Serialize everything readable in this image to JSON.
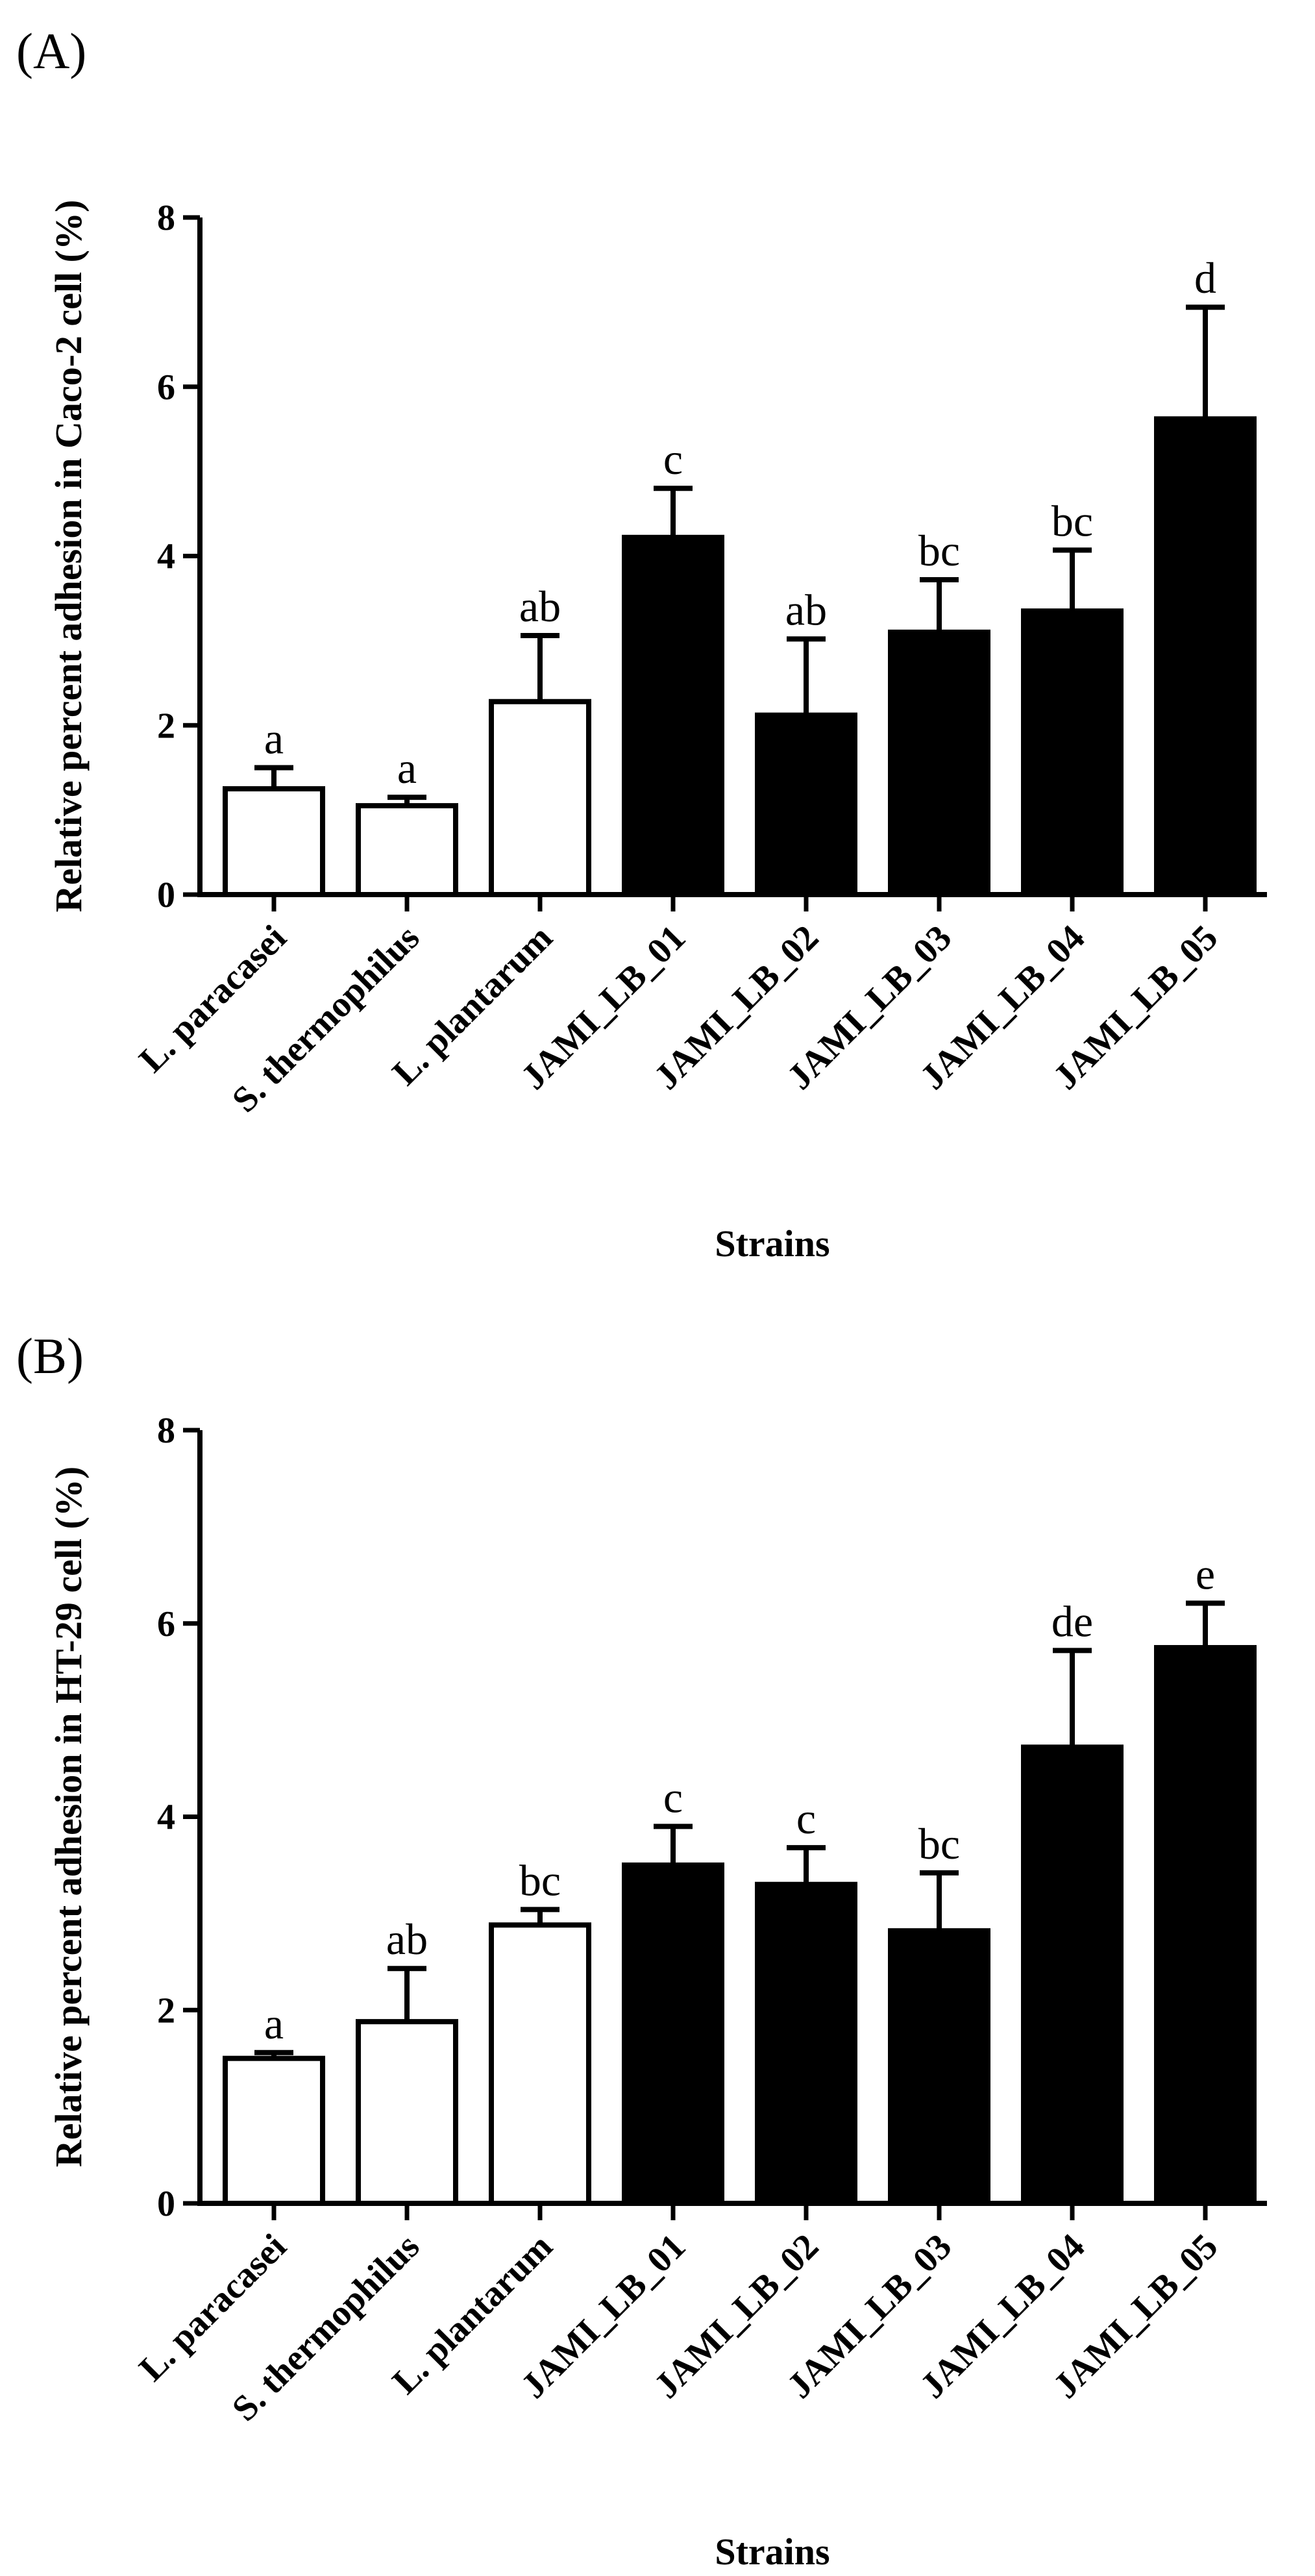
{
  "chart_data": [
    {
      "panel_label": "(A)",
      "type": "bar",
      "title": "",
      "xlabel": "Strains",
      "ylabel": "Relative percent adhesion in Caco-2 cell (%)",
      "ylim": [
        0,
        8
      ],
      "yticks": [
        "0",
        "2",
        "4",
        "6",
        "8"
      ],
      "categories": [
        "L. paracasei",
        "S. thermophilus",
        "L. plantarum",
        "JAMI_LB_01",
        "JAMI_LB_02",
        "JAMI_LB_03",
        "JAMI_LB_04",
        "JAMI_LB_05"
      ],
      "values": [
        1.25,
        1.05,
        2.28,
        4.22,
        2.12,
        3.1,
        3.35,
        5.62
      ],
      "errors": [
        0.25,
        0.1,
        0.78,
        0.58,
        0.9,
        0.62,
        0.72,
        1.32
      ],
      "letters": [
        "a",
        "a",
        "ab",
        "c",
        "ab",
        "bc",
        "bc",
        "d"
      ],
      "fills": [
        "#ffffff",
        "#ffffff",
        "#ffffff",
        "#000000",
        "#000000",
        "#000000",
        "#000000",
        "#000000"
      ]
    },
    {
      "panel_label": "(B)",
      "type": "bar",
      "title": "",
      "xlabel": "Strains",
      "ylabel": "Relative percent adhesion in HT-29 cell (%)",
      "ylim": [
        0,
        8
      ],
      "yticks": [
        "0",
        "2",
        "4",
        "6",
        "8"
      ],
      "categories": [
        "L. paracasei",
        "S. thermophilus",
        "L. plantarum",
        "JAMI_LB_01",
        "JAMI_LB_02",
        "JAMI_LB_03",
        "JAMI_LB_04",
        "JAMI_LB_05"
      ],
      "values": [
        1.5,
        1.88,
        2.88,
        3.5,
        3.3,
        2.82,
        4.72,
        5.75
      ],
      "errors": [
        0.06,
        0.55,
        0.16,
        0.4,
        0.38,
        0.6,
        1.0,
        0.46
      ],
      "letters": [
        "a",
        "ab",
        "bc",
        "c",
        "c",
        "bc",
        "de",
        "e"
      ],
      "fills": [
        "#ffffff",
        "#ffffff",
        "#ffffff",
        "#000000",
        "#000000",
        "#000000",
        "#000000",
        "#000000"
      ]
    }
  ]
}
